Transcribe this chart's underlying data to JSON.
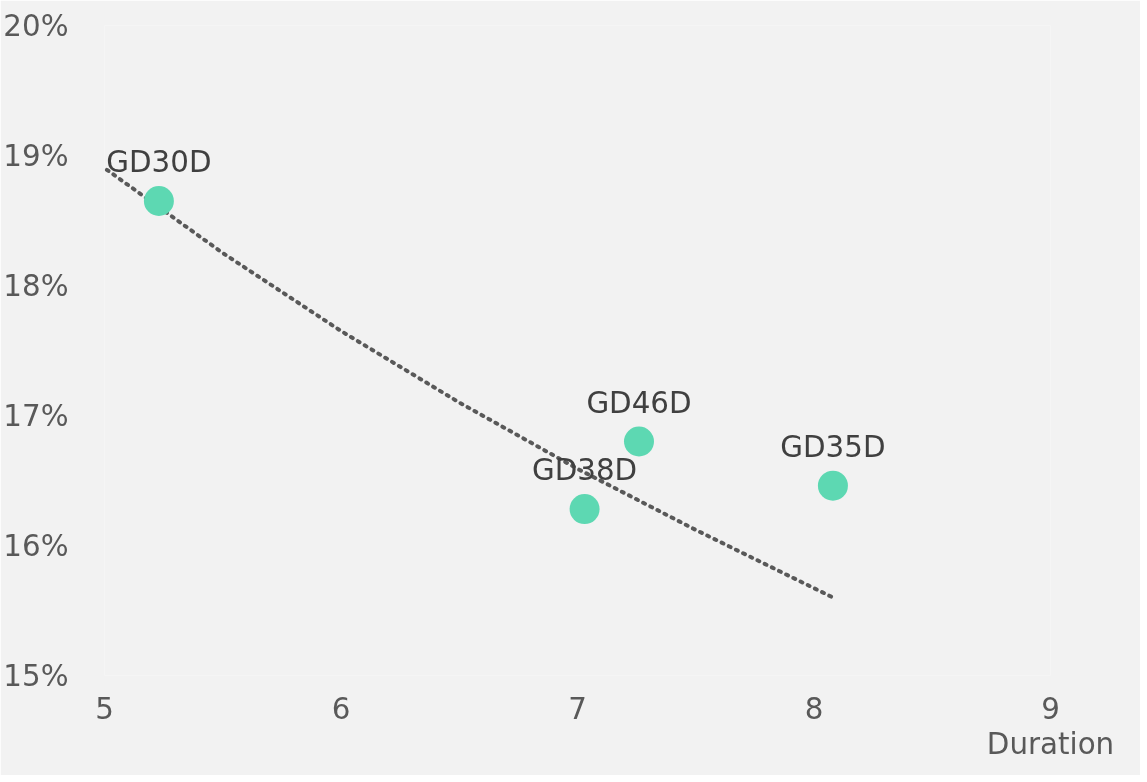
{
  "chart_data": {
    "type": "scatter",
    "xlabel": "Duration",
    "xlim": [
      5,
      9
    ],
    "xticks": [
      5,
      6,
      7,
      8,
      9
    ],
    "ylim": [
      15,
      20
    ],
    "yticks": [
      {
        "value": 15,
        "label": "15%"
      },
      {
        "value": 16,
        "label": "16%"
      },
      {
        "value": 17,
        "label": "17%"
      },
      {
        "value": 18,
        "label": "18%"
      },
      {
        "value": 19,
        "label": "19%"
      },
      {
        "value": 20,
        "label": "20%"
      }
    ],
    "grid": false,
    "series": [
      {
        "color": "#5dd8b2",
        "marker": "circle",
        "x": [
          5.23,
          7.03,
          7.26,
          8.08
        ],
        "values": [
          18.65,
          16.28,
          16.8,
          16.46
        ]
      },
      {
        "type": "line",
        "color": "#595959",
        "line_style": "dotted",
        "marker": "none",
        "x": [
          5.01,
          5.5,
          6.0,
          6.5,
          7.0,
          7.5,
          8.08
        ],
        "values": [
          18.89,
          18.25,
          17.65,
          17.1,
          16.59,
          16.12,
          15.6
        ]
      }
    ],
    "annotations": [
      {
        "text": "GD30D",
        "x": 5.23,
        "y": 18.65
      },
      {
        "text": "GD38D",
        "x": 7.03,
        "y": 16.28
      },
      {
        "text": "GD46D",
        "x": 7.26,
        "y": 16.8
      },
      {
        "text": "GD35D",
        "x": 8.08,
        "y": 16.46
      }
    ]
  }
}
